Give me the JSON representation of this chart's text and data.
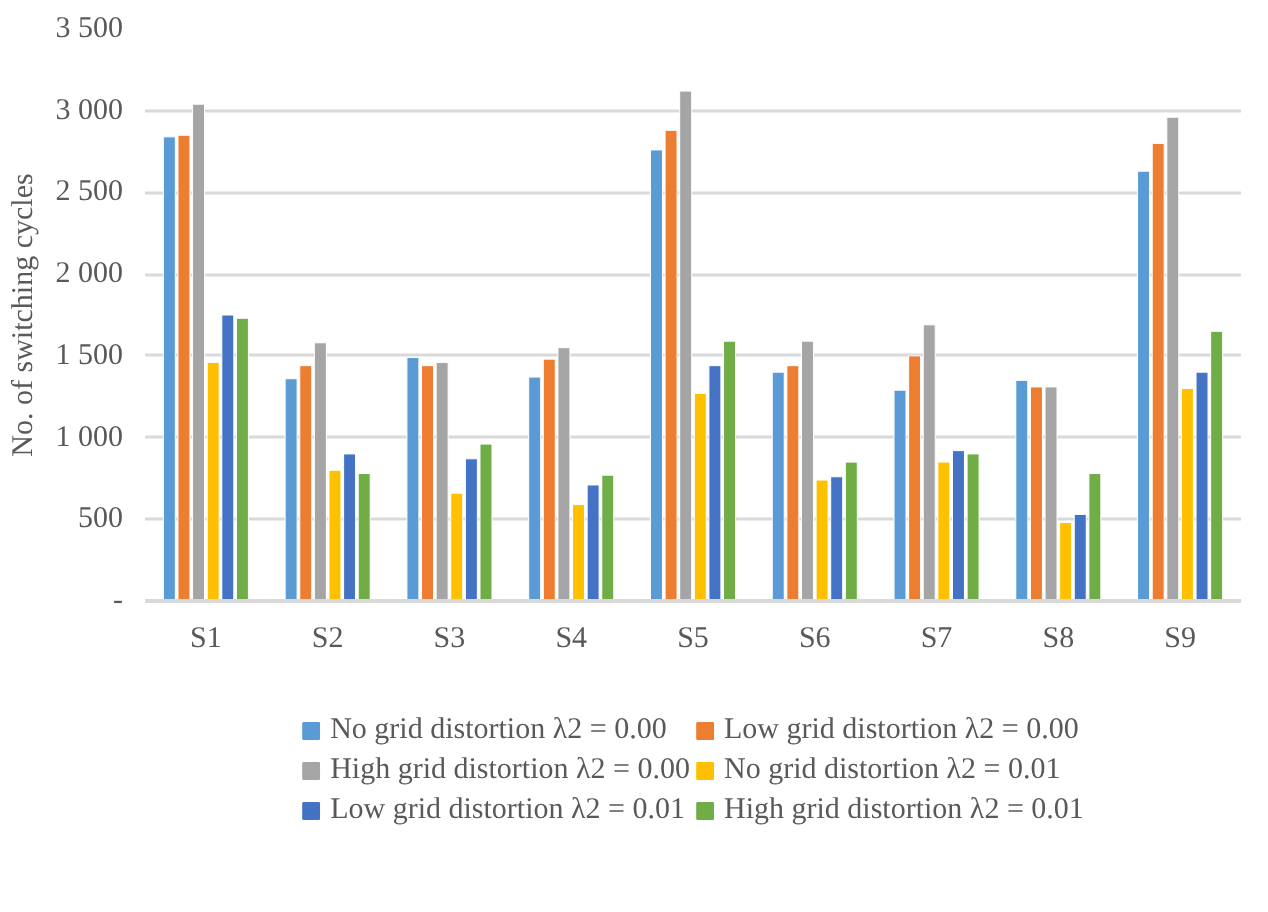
{
  "chart_data": {
    "type": "bar",
    "ylabel": "No. of switching cycles",
    "categories": [
      "S1",
      "S2",
      "S3",
      "S4",
      "S5",
      "S6",
      "S7",
      "S8",
      "S9"
    ],
    "series": [
      {
        "name": "No grid distortion λ2 = 0.00",
        "color": "#5b9bd5",
        "values": [
          2840,
          1360,
          1490,
          1370,
          2760,
          1400,
          1290,
          1350,
          2630
        ]
      },
      {
        "name": "Low grid distortion λ2 = 0.00",
        "color": "#ed7d31",
        "values": [
          2850,
          1440,
          1440,
          1480,
          2880,
          1440,
          1500,
          1310,
          2800
        ]
      },
      {
        "name": "High grid distortion λ2 = 0.00",
        "color": "#a5a5a5",
        "values": [
          3040,
          1580,
          1460,
          1550,
          3120,
          1590,
          1690,
          1310,
          2960
        ]
      },
      {
        "name": "No grid distortion λ2 = 0.01",
        "color": "#ffc000",
        "values": [
          1460,
          800,
          660,
          590,
          1270,
          740,
          850,
          480,
          1300
        ]
      },
      {
        "name": "Low grid distortion λ2 = 0.01",
        "color": "#4472c4",
        "values": [
          1750,
          900,
          870,
          710,
          1440,
          760,
          920,
          530,
          1400
        ]
      },
      {
        "name": "High grid distortion λ2 = 0.01",
        "color": "#70ad47",
        "values": [
          1730,
          780,
          960,
          770,
          1590,
          850,
          900,
          780,
          1650
        ]
      }
    ],
    "ylim": [
      0,
      3500
    ],
    "yticks": [
      {
        "value": 0,
        "label": "-"
      },
      {
        "value": 500,
        "label": "500"
      },
      {
        "value": 1000,
        "label": "1 000"
      },
      {
        "value": 1500,
        "label": "1 500"
      },
      {
        "value": 2000,
        "label": "2 000"
      },
      {
        "value": 2500,
        "label": "2 500"
      },
      {
        "value": 3000,
        "label": "3 000"
      },
      {
        "value": 3500,
        "label": "3 500"
      }
    ],
    "grid": "y",
    "legend": "bottom"
  }
}
